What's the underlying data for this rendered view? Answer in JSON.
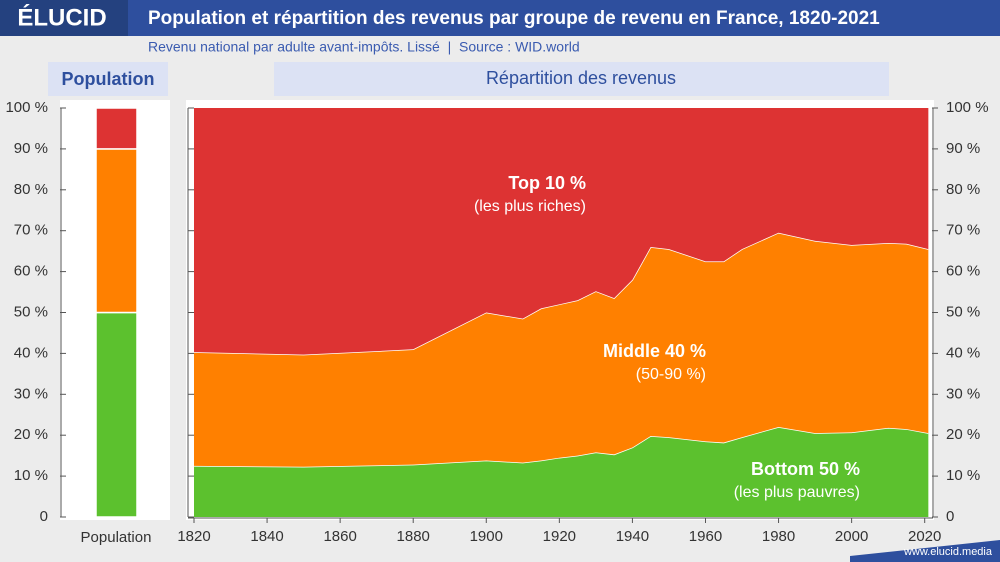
{
  "header": {
    "logo": "ÉLUCID",
    "title": "Population et répartition des revenus par groupe de revenu en France, 1820-2021",
    "subtitle": "Revenu national par adulte avant-impôts. Lissé  |  Source : WID.world"
  },
  "footer": "www.elucid.media",
  "chart_data": [
    {
      "type": "bar",
      "title": "Population",
      "categories": [
        "Population"
      ],
      "series": [
        {
          "color": "#5cc12e",
          "values": [
            50
          ]
        },
        {
          "color": "#ff8000",
          "values": [
            40
          ]
        },
        {
          "color": "#dd3333",
          "values": [
            10
          ]
        }
      ],
      "ylim": [
        0,
        100
      ],
      "yticks": [
        {
          "value": 0,
          "label": "0"
        },
        {
          "value": 10,
          "label": "10 %"
        },
        {
          "value": 20,
          "label": "20 %"
        },
        {
          "value": 30,
          "label": "30 %"
        },
        {
          "value": 40,
          "label": "40 %"
        },
        {
          "value": 50,
          "label": "50 %"
        },
        {
          "value": 60,
          "label": "60 %"
        },
        {
          "value": 70,
          "label": "70 %"
        },
        {
          "value": 80,
          "label": "80 %"
        },
        {
          "value": 90,
          "label": "90 %"
        },
        {
          "value": 100,
          "label": "100 %"
        }
      ]
    },
    {
      "type": "area",
      "title": "Répartition des revenus",
      "x": [
        1820,
        1850,
        1880,
        1900,
        1910,
        1915,
        1920,
        1925,
        1930,
        1935,
        1940,
        1945,
        1950,
        1960,
        1965,
        1970,
        1980,
        1990,
        2000,
        2010,
        2015,
        2021
      ],
      "series": [
        {
          "name": "Bottom 50 %",
          "sublabel": "(les plus pauvres)",
          "color": "#5cc12e",
          "values": [
            12.5,
            12.3,
            12.8,
            13.8,
            13.3,
            13.8,
            14.5,
            15,
            15.8,
            15.3,
            17,
            19.8,
            19.5,
            18.5,
            18.2,
            19.5,
            22,
            20.5,
            20.7,
            21.8,
            21.5,
            20.5
          ]
        },
        {
          "name": "Middle 40 %",
          "sublabel": "(50-90 %)",
          "color": "#ff8000",
          "values": [
            27.8,
            27.4,
            28.2,
            36.2,
            35.2,
            37.2,
            37.5,
            38,
            39.4,
            38.2,
            41,
            46.2,
            46,
            44,
            44.3,
            46,
            47.5,
            47,
            45.8,
            45.2,
            45.3,
            45
          ]
        },
        {
          "name": "Top 10 %",
          "sublabel": "(les plus riches)",
          "color": "#dd3333",
          "values": [
            59.7,
            60.3,
            59,
            50,
            51.5,
            49,
            48,
            47,
            44.8,
            46.5,
            42,
            34,
            34.5,
            37.5,
            37.5,
            34.5,
            30.5,
            32.5,
            33.5,
            33,
            33.2,
            34.5
          ]
        }
      ],
      "xlim": [
        1820,
        2022
      ],
      "xticks": [
        1820,
        1840,
        1860,
        1880,
        1900,
        1920,
        1940,
        1960,
        1980,
        2000,
        2020
      ],
      "ylim": [
        0,
        100
      ],
      "yticks": [
        {
          "value": 0,
          "label": "0"
        },
        {
          "value": 10,
          "label": "10 %"
        },
        {
          "value": 20,
          "label": "20 %"
        },
        {
          "value": 30,
          "label": "30 %"
        },
        {
          "value": 40,
          "label": "40 %"
        },
        {
          "value": 50,
          "label": "50 %"
        },
        {
          "value": 60,
          "label": "60 %"
        },
        {
          "value": 70,
          "label": "70 %"
        },
        {
          "value": 80,
          "label": "80 %"
        },
        {
          "value": 90,
          "label": "90 %"
        },
        {
          "value": 100,
          "label": "100 %"
        }
      ]
    }
  ]
}
